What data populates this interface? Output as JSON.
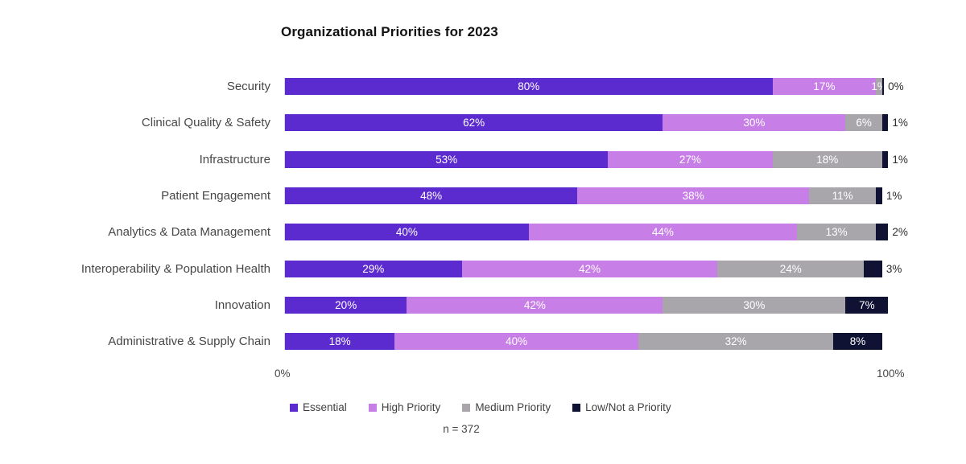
{
  "title": "Organizational Priorities for 2023",
  "note": "n = 372",
  "axis": {
    "min_label": "0%",
    "max_label": "100%"
  },
  "colors": {
    "essential": "#5c2bcf",
    "high": "#c77ee6",
    "medium": "#a8a5ab",
    "low": "#0f1233",
    "bar_label": "#ffffff",
    "outside_label": "#2b2b2b",
    "axis_line": "#d9d9d9",
    "text": "#474747",
    "title_text": "#111111"
  },
  "legend": [
    {
      "key": "essential",
      "label": "Essential"
    },
    {
      "key": "high",
      "label": "High Priority"
    },
    {
      "key": "medium",
      "label": "Medium Priority"
    },
    {
      "key": "low",
      "label": "Low/Not a Priority"
    }
  ],
  "chart_data": {
    "type": "bar",
    "orientation": "horizontal",
    "stacked": true,
    "title": "Organizational Priorities for 2023",
    "categories": [
      "Security",
      "Clinical Quality & Safety",
      "Infrastructure",
      "Patient Engagement",
      "Analytics & Data Management",
      "Interoperability & Population Health",
      "Innovation",
      "Administrative & Supply Chain"
    ],
    "series": [
      {
        "name": "Essential",
        "key": "essential",
        "values": [
          80,
          62,
          53,
          48,
          40,
          29,
          20,
          18
        ]
      },
      {
        "name": "High Priority",
        "key": "high",
        "values": [
          17,
          30,
          27,
          38,
          44,
          42,
          42,
          40
        ]
      },
      {
        "name": "Medium Priority",
        "key": "medium",
        "values": [
          1,
          6,
          18,
          11,
          13,
          24,
          30,
          32
        ]
      },
      {
        "name": "Low/Not a Priority",
        "key": "low",
        "values": [
          0,
          1,
          1,
          1,
          2,
          3,
          7,
          8
        ]
      }
    ],
    "value_suffix": "%",
    "xlim": [
      0,
      100
    ],
    "x_tick_labels": [
      "0%",
      "100%"
    ],
    "legend_position": "bottom",
    "grid": false,
    "note": "n = 372"
  }
}
